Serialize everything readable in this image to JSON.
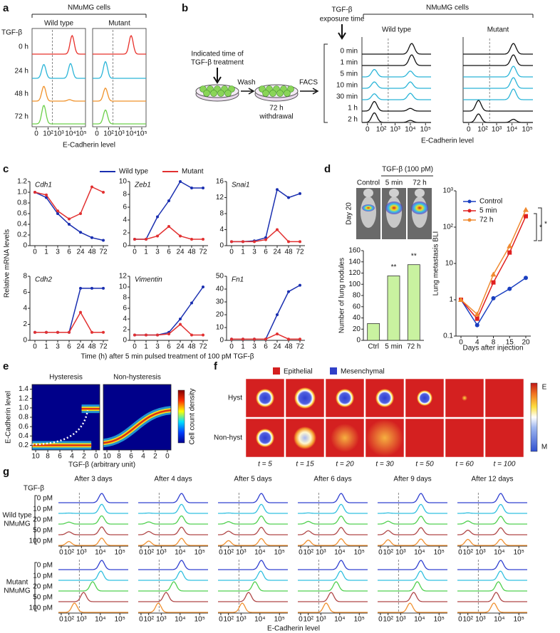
{
  "a": {
    "label": "a",
    "title": "NMuMG cells",
    "treatment": "TGF-β",
    "columns": [
      "Wild type",
      "Mutant"
    ],
    "rows": [
      "0 h",
      "24 h",
      "48 h",
      "72 h"
    ],
    "xticks": [
      "0",
      "10²",
      "10³",
      "10⁴",
      "10⁵"
    ],
    "xlabel": "E-Cadherin level"
  },
  "b": {
    "label": "b",
    "title": "NMuMG cells",
    "treatment": "TGF-β",
    "treatment_sub": "exposure time",
    "columns": [
      "Wild type",
      "Mutant"
    ],
    "rows": [
      "0 min",
      "1 min",
      "5 min",
      "10 min",
      "30 min",
      "1 h",
      "2 h"
    ],
    "diagram": {
      "step_a": "Indicated time of",
      "step_b": "TGF-β treatment",
      "wash": "Wash",
      "withdrawal_a": "72 h",
      "withdrawal_b": "withdrawal",
      "facs": "FACS"
    },
    "xticks": [
      "0",
      "10²",
      "10³",
      "10⁴",
      "10⁵"
    ],
    "xlabel": "E-Cadherin level"
  },
  "c": {
    "label": "c",
    "ylabel": "Relative mRNA levels",
    "xlabel": "Time (h) after 5 min pulsed treatment of 100 pM TGF-β"
  },
  "d": {
    "label": "d",
    "treatment": "TGF-β (100 pM)",
    "images": [
      "Control",
      "5 min",
      "72 h"
    ],
    "day": "Day 20"
  },
  "e": {
    "label": "e",
    "panels": [
      "Hysteresis",
      "Non-hysteresis"
    ],
    "ylabel": "E-Cadherin level",
    "ylim": [
      0.1,
      1.5
    ],
    "yticks": [
      0.2,
      0.4,
      0.6,
      0.8,
      {
        "value": 1,
        "label": "1.0"
      },
      1.2,
      1.4
    ],
    "xlabel": "TGF-β (arbitrary unit)",
    "xlim": [
      10.6,
      -0.6
    ],
    "xticks": [
      10,
      8,
      6,
      4,
      2,
      0
    ],
    "colorbar": "Cell count density"
  },
  "f": {
    "label": "f",
    "legend": [
      "Epithelial",
      "Mesenchymal"
    ],
    "rows": [
      "Hyst",
      "Non-hyst"
    ],
    "times": [
      "t = 5",
      "t = 15",
      "t = 20",
      "t = 30",
      "t = 50",
      "t = 60",
      "t = 100"
    ],
    "colorbar": [
      "E",
      "M"
    ]
  },
  "g": {
    "label": "g",
    "treatment": "TGF-β",
    "columns": [
      "After 3 days",
      "After 4 days",
      "After 5 days",
      "After 6 days",
      "After 9 days",
      "After 12 days"
    ],
    "groups": [
      [
        "Wild type",
        "NMuMG"
      ],
      [
        "Mutant",
        "NMuMG"
      ]
    ],
    "rows": [
      "0 pM",
      "10 pM",
      "20 pM",
      "50 pM",
      "100 pM"
    ],
    "xticks": [
      "0",
      "10²",
      "10³",
      "10⁴",
      "10⁵"
    ],
    "xlabel": "E-Cadherin level"
  },
  "chart_data": [
    {
      "type": "line",
      "title": "Cdh1",
      "categories": [
        0,
        1,
        3,
        6,
        24,
        48,
        72
      ],
      "ylim": [
        0,
        1.2
      ],
      "yticks": [
        0,
        0.2,
        0.4,
        0.6,
        0.8,
        {
          "value": 1,
          "label": "1.0"
        },
        1.2
      ],
      "series": [
        {
          "name": "Wild type",
          "color": "#1a2fb0",
          "values": [
            1.0,
            0.9,
            0.6,
            0.4,
            0.25,
            0.15,
            0.1
          ]
        },
        {
          "name": "Mutant",
          "color": "#e23030",
          "values": [
            1.0,
            0.95,
            0.65,
            0.5,
            0.6,
            1.1,
            1.0
          ]
        }
      ]
    },
    {
      "type": "line",
      "title": "Zeb1",
      "categories": [
        0,
        1,
        3,
        6,
        24,
        48,
        72
      ],
      "ylim": [
        0,
        10
      ],
      "yticks": [
        0,
        2,
        4,
        6,
        8,
        10
      ],
      "series": [
        {
          "name": "Wild type",
          "color": "#1a2fb0",
          "values": [
            1,
            1,
            4.5,
            7,
            10,
            9,
            9
          ]
        },
        {
          "name": "Mutant",
          "color": "#e23030",
          "values": [
            1,
            1,
            1.5,
            3,
            1.5,
            1,
            1
          ]
        }
      ]
    },
    {
      "type": "line",
      "title": "Snai1",
      "categories": [
        0,
        1,
        3,
        6,
        24,
        48,
        72
      ],
      "ylim": [
        0,
        16
      ],
      "yticks": [
        0,
        4,
        8,
        12,
        16
      ],
      "series": [
        {
          "name": "Wild type",
          "color": "#1a2fb0",
          "values": [
            1,
            1,
            1.2,
            2,
            14,
            12,
            13
          ]
        },
        {
          "name": "Mutant",
          "color": "#e23030",
          "values": [
            1,
            1,
            1,
            1.5,
            4,
            1,
            1
          ]
        }
      ]
    },
    {
      "type": "line",
      "title": "Cdh2",
      "categories": [
        0,
        1,
        3,
        6,
        24,
        48,
        72
      ],
      "ylim": [
        0,
        8
      ],
      "yticks": [
        0,
        2,
        4,
        6,
        8
      ],
      "series": [
        {
          "name": "Wild type",
          "color": "#1a2fb0",
          "values": [
            1,
            1,
            1,
            1,
            6.5,
            6.5,
            6.5
          ]
        },
        {
          "name": "Mutant",
          "color": "#e23030",
          "values": [
            1,
            1,
            1,
            1,
            3.5,
            1,
            1
          ]
        }
      ]
    },
    {
      "type": "line",
      "title": "Vimentin",
      "categories": [
        0,
        1,
        3,
        6,
        24,
        48,
        72
      ],
      "ylim": [
        0,
        12
      ],
      "yticks": [
        0,
        2,
        4,
        6,
        8,
        10,
        12
      ],
      "series": [
        {
          "name": "Wild type",
          "color": "#1a2fb0",
          "values": [
            1,
            1,
            1,
            1.5,
            4,
            7,
            10
          ]
        },
        {
          "name": "Mutant",
          "color": "#e23030",
          "values": [
            1,
            1,
            1,
            1.2,
            3,
            1,
            1
          ]
        }
      ]
    },
    {
      "type": "line",
      "title": "Fn1",
      "categories": [
        0,
        1,
        3,
        6,
        24,
        48,
        72
      ],
      "ylim": [
        0,
        50
      ],
      "yticks": [
        0,
        10,
        20,
        30,
        40,
        50
      ],
      "series": [
        {
          "name": "Wild type",
          "color": "#1a2fb0",
          "values": [
            1,
            1,
            1,
            1,
            20,
            38,
            43
          ]
        },
        {
          "name": "Mutant",
          "color": "#e23030",
          "values": [
            1,
            1,
            1,
            1,
            5,
            1,
            1
          ]
        }
      ]
    },
    {
      "type": "bar",
      "ylabel": "Number of lung nodules",
      "categories": [
        "Ctrl",
        "5 min",
        "72 h"
      ],
      "values": [
        30,
        115,
        135
      ],
      "color": "#c9f2a0",
      "ylim": [
        0,
        160
      ],
      "yticks": [
        0,
        20,
        40,
        60,
        80,
        100,
        120,
        140,
        160
      ],
      "annotations": [
        "**",
        "**"
      ]
    },
    {
      "type": "line",
      "log_scale": true,
      "ylabel": "Lung metastasis BLI",
      "xlabel": "Days after injection",
      "categories": [
        0,
        4,
        8,
        15,
        20
      ],
      "ylim": [
        0.1,
        1000
      ],
      "yticks": [
        0.1,
        1,
        10,
        {
          "value": 100,
          "label": "10²"
        },
        {
          "value": 1000,
          "label": "10³"
        }
      ],
      "legend": "upper left",
      "annotations": [
        "*",
        "*"
      ],
      "series": [
        {
          "name": "Control",
          "color": "#1a3fc0",
          "marker": "circle",
          "values": [
            1,
            0.2,
            1.1,
            2,
            4
          ]
        },
        {
          "name": "5 min",
          "color": "#e02020",
          "marker": "square",
          "values": [
            1,
            0.3,
            3,
            20,
            200
          ]
        },
        {
          "name": "72 h",
          "color": "#f08a30",
          "marker": "triangle",
          "values": [
            1,
            0.4,
            5,
            30,
            300
          ]
        }
      ]
    }
  ]
}
